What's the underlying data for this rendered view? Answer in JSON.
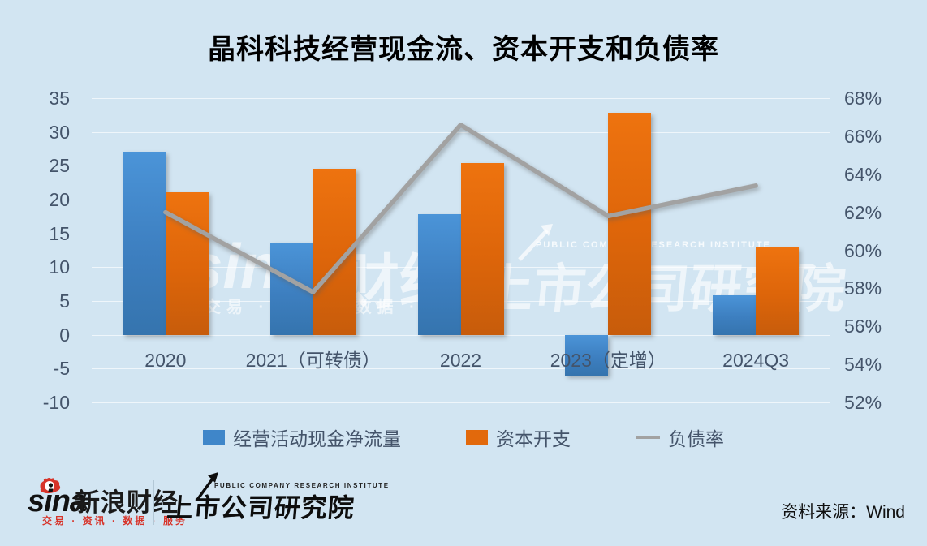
{
  "chart_data": {
    "type": "bar",
    "combo": "bar+line",
    "title": "晶科科技经营现金流、资本开支和负债率",
    "categories": [
      "2020",
      "2021（可转债）",
      "2022",
      "2023（定增）",
      "2024Q3"
    ],
    "series": [
      {
        "name": "经营活动现金净流量",
        "type": "bar",
        "axis": "left",
        "color": "#3f86c9",
        "values": [
          27.1,
          13.6,
          17.9,
          -6,
          5.9
        ]
      },
      {
        "name": "资本开支",
        "type": "bar",
        "axis": "left",
        "color": "#e2690c",
        "values": [
          21.1,
          24.6,
          25.4,
          32.9,
          12.9
        ]
      },
      {
        "name": "负债率",
        "type": "line",
        "axis": "right",
        "unit": "%",
        "color": "#a2a2a2",
        "values": [
          62,
          57.8,
          66.6,
          61.8,
          63.4
        ]
      }
    ],
    "left_axis": {
      "min": -10,
      "max": 35,
      "ticks": [
        35,
        30,
        25,
        20,
        15,
        10,
        5,
        0,
        -5,
        -10
      ]
    },
    "right_axis": {
      "min": 52,
      "max": 68,
      "ticks": [
        "68%",
        "66%",
        "64%",
        "62%",
        "60%",
        "58%",
        "56%",
        "54%",
        "52%"
      ]
    },
    "legend_position": "bottom",
    "grid": "horizontal"
  },
  "watermarks": {
    "wm1_main": "sina",
    "wm1_suffix": "财经",
    "wm1_tagline": "交易 · 资讯 · 数据 · 服务",
    "wm2_small": "PUBLIC COMPANY RESEARCH INSTITUTE",
    "wm2_main": "上市公司研究院"
  },
  "footer": {
    "sina_logo_text": "sina",
    "sina_brand": "新浪财经",
    "sina_tagline": "交易 · 资讯 · 数据 · 服务",
    "institute_small": "PUBLIC COMPANY RESEARCH INSTITUTE",
    "institute_name": "上市公司研究院",
    "source_label": "资料来源：Wind"
  }
}
